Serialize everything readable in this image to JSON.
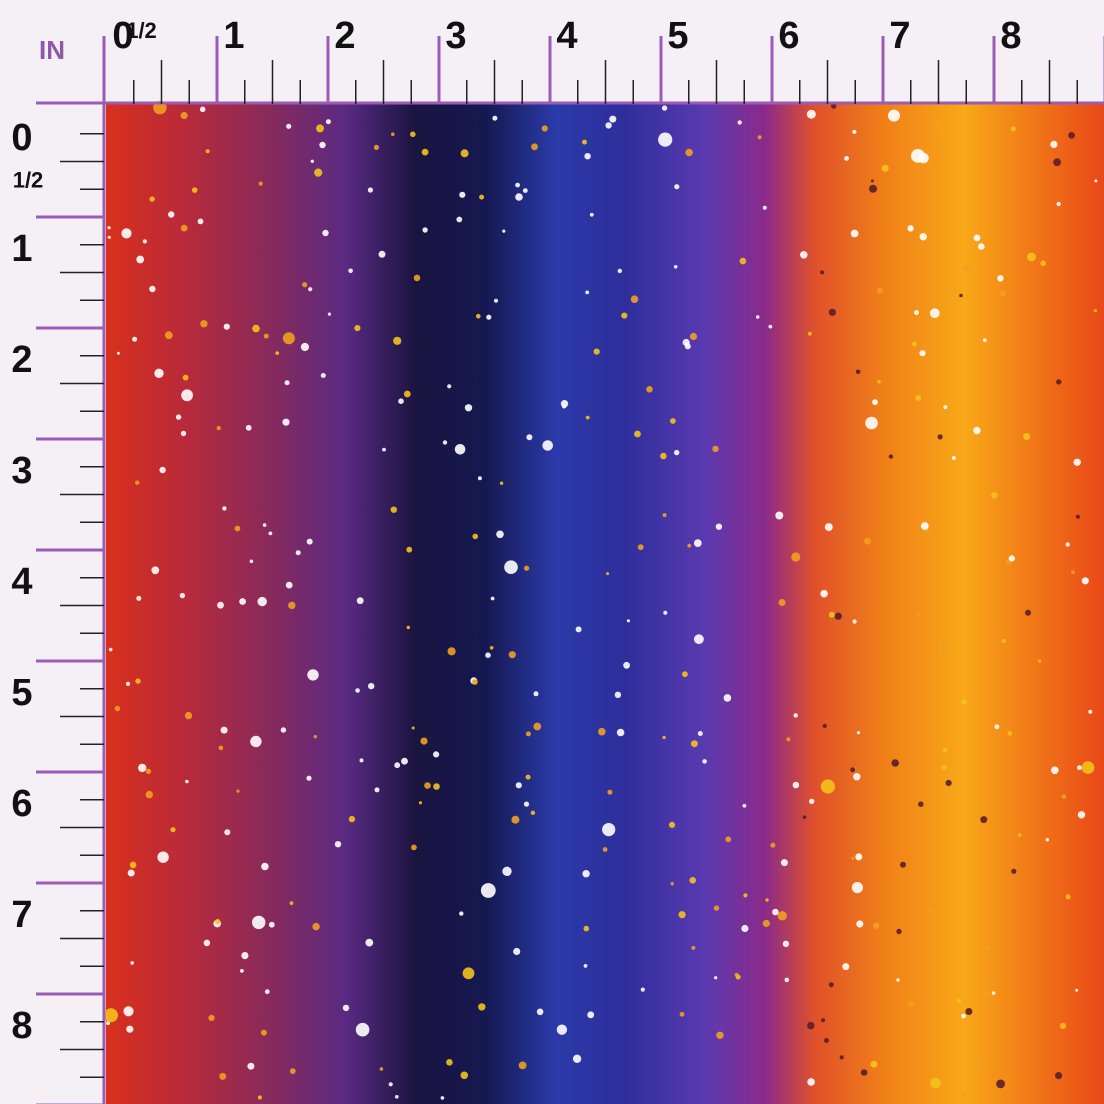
{
  "ruler": {
    "unit": "IN",
    "top_labels": [
      "0",
      "1/2",
      "1",
      "2",
      "3",
      "4",
      "5",
      "6",
      "7",
      "8"
    ],
    "left_labels": [
      "0",
      "1/2",
      "1",
      "2",
      "3",
      "4",
      "5",
      "6",
      "7",
      "8"
    ]
  }
}
